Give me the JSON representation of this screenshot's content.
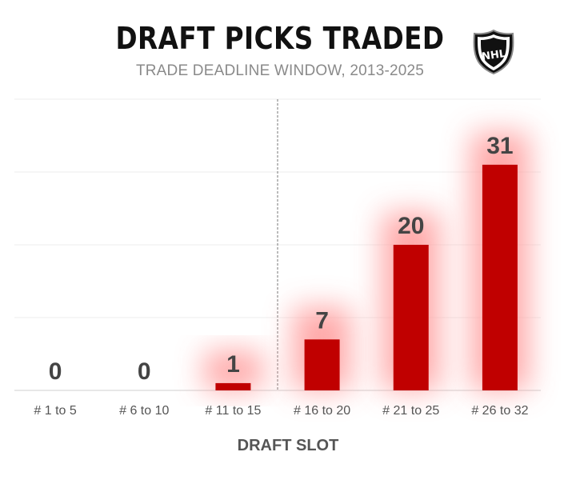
{
  "chart_data": {
    "type": "bar",
    "title": "DRAFT PICKS TRADED",
    "subtitle": "TRADE DEADLINE WINDOW, 2013-2025",
    "xlabel": "DRAFT SLOT",
    "ylabel": "",
    "categories": [
      "# 1 to 5",
      "# 6 to 10",
      "# 11 to 15",
      "# 16 to 20",
      "# 21 to 25",
      "# 26 to 32"
    ],
    "values": [
      0,
      0,
      1,
      7,
      20,
      31
    ],
    "ylim": [
      0,
      40
    ],
    "grid": true,
    "bar_color": "#c00000",
    "glow_color": "#ff9a9a",
    "divider_after_category": "# 11 to 15"
  },
  "logo": {
    "icon": "nhl-shield-icon",
    "text": "NHL"
  }
}
